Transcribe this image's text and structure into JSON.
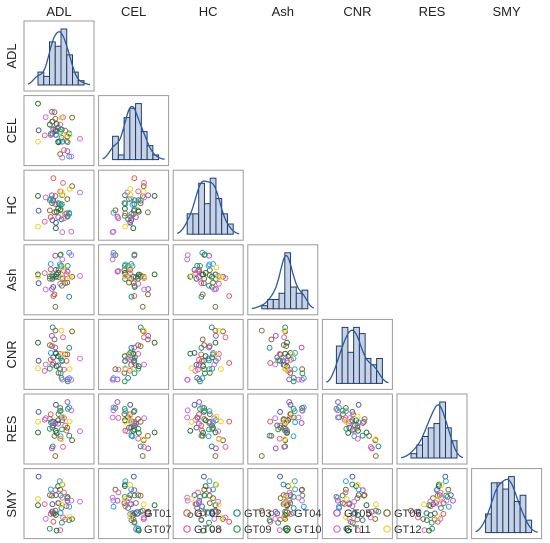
{
  "chart_data": {
    "type": "scatter",
    "subtype": "pair-plot (lower triangle scatter, diagonal histogram + density)",
    "variables": [
      "ADL",
      "CEL",
      "HC",
      "Ash",
      "CNR",
      "RES",
      "SMY"
    ],
    "groups": [
      "GT01",
      "GT02",
      "GT03",
      "GT04",
      "GT05",
      "GT06",
      "GT07",
      "GT08",
      "GT09",
      "GT10",
      "GT11",
      "GT12"
    ],
    "group_colors": [
      "#4a5a9a",
      "#e05858",
      "#1f8a8a",
      "#8a6a3a",
      "#a050c0",
      "#7a6a20",
      "#2aa0e0",
      "#e060a0",
      "#2a9a5a",
      "#1e6e2e",
      "#c070e0",
      "#f0d020"
    ],
    "points_per_group": 4,
    "histogram_color": "#c7d3e3",
    "histogram_edge": "#1f3b73",
    "density_color": "#2a5aa0",
    "legend_position": "bottom",
    "legend": {
      "items": [
        "GT01",
        "GT02",
        "GT03",
        "GT04",
        "GT05",
        "GT06",
        "GT07",
        "GT08",
        "GT09",
        "GT10",
        "GT11",
        "GT12"
      ]
    }
  }
}
